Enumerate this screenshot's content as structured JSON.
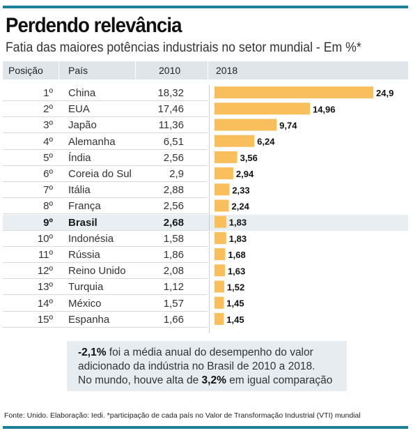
{
  "title": "Perdendo relevância",
  "subtitle": "Fatia das maiores potências industriais no setor mundial - Em %*",
  "columns": {
    "posicao": "Posição",
    "pais": "País",
    "y2010": "2010",
    "y2018": "2018"
  },
  "highlight_country": "Brasil",
  "colors": {
    "bar": "#f8bf5c",
    "rule": "#1a7f97",
    "header_bg": "#dfe5e8",
    "highlight_bg": "#e8eef2",
    "note_bg": "#e6ecef"
  },
  "chart_data": {
    "type": "bar",
    "orientation": "horizontal",
    "categories": [
      "China",
      "EUA",
      "Japão",
      "Alemanha",
      "Índia",
      "Coreia do Sul",
      "Itália",
      "França",
      "Brasil",
      "Indonésia",
      "Rússia",
      "Reino Unido",
      "Turquia",
      "México",
      "Espanha"
    ],
    "positions": [
      "1º",
      "2º",
      "3º",
      "4º",
      "5º",
      "6º",
      "7º",
      "8º",
      "9º",
      "10º",
      "11º",
      "12º",
      "13º",
      "14º",
      "15º"
    ],
    "values_2010": [
      "18,32",
      "17,46",
      "11,36",
      "6,51",
      "2,56",
      "2,9",
      "2,88",
      "2,56",
      "2,68",
      "1,58",
      "1,86",
      "2,08",
      "1,12",
      "1,57",
      "1,66"
    ],
    "series": [
      {
        "name": "2018",
        "values": [
          24.9,
          14.96,
          9.74,
          6.24,
          3.56,
          2.94,
          2.33,
          2.24,
          1.83,
          1.83,
          1.68,
          1.63,
          1.52,
          1.45,
          1.45
        ],
        "labels": [
          "24,9",
          "14,96",
          "9,74",
          "6,24",
          "3,56",
          "2,94",
          "2,33",
          "2,24",
          "1,83",
          "1,83",
          "1,68",
          "1,63",
          "1,52",
          "1,45",
          "1,45"
        ]
      }
    ],
    "xlim": [
      0,
      24.9
    ],
    "grid": false
  },
  "note": {
    "line1_bold": "-2,1%",
    "line1_rest": " foi a média anual do desempenho do valor",
    "line2": "adicionado da indústria no Brasil de 2010 a 2018.",
    "line3_pre": "No mundo, houve alta de ",
    "line3_bold": "3,2%",
    "line3_post": " em igual comparação"
  },
  "source": "Fonte: Unido. Elaboração: Iedi. *participação de cada país no Valor de Transformação Industrial (VTI) mundial"
}
